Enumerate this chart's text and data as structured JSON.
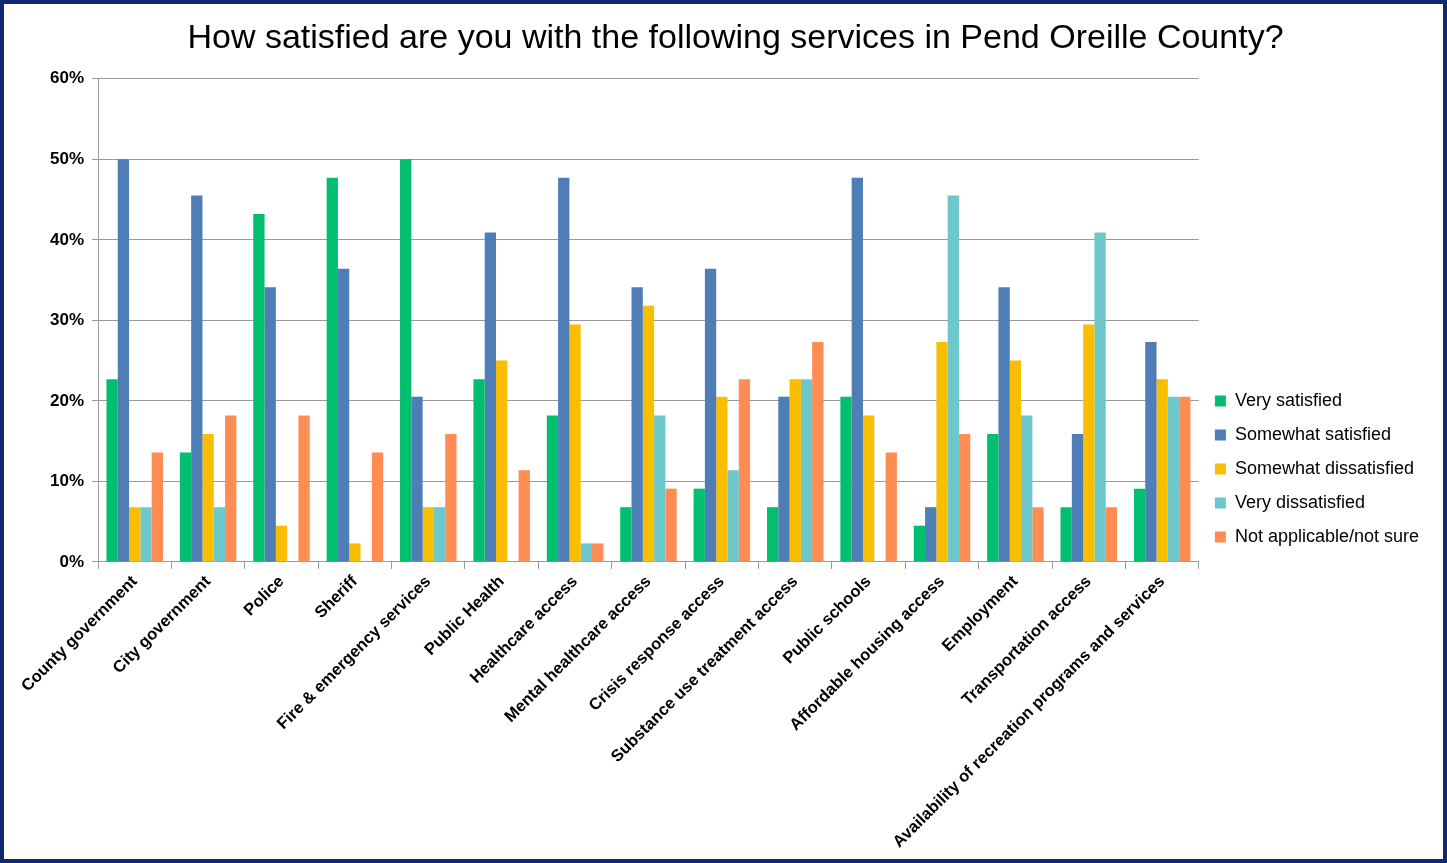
{
  "chart_data": {
    "type": "bar",
    "title": "How satisfied are you with the following services in Pend Oreille County?",
    "categories": [
      "County government",
      "City government",
      "Police",
      "Sheriff",
      "Fire & emergency services",
      "Public Health",
      "Healthcare access",
      "Mental healthcare access",
      "Crisis response access",
      "Substance use treatment access",
      "Public schools",
      "Affordable housing access",
      "Employment",
      "Transportation access",
      "Availability of recreation programs and services"
    ],
    "series": [
      {
        "name": "Very satisfied",
        "color": "#00bf6f",
        "values": [
          22.7,
          13.6,
          43.2,
          47.7,
          50.0,
          22.7,
          18.2,
          6.8,
          9.1,
          6.8,
          20.5,
          4.5,
          15.9,
          6.8,
          9.1
        ]
      },
      {
        "name": "Somewhat satisfied",
        "color": "#4f7db5",
        "values": [
          50.0,
          45.5,
          34.1,
          36.4,
          20.5,
          40.9,
          47.7,
          34.1,
          36.4,
          20.5,
          47.7,
          6.8,
          34.1,
          15.9,
          27.3
        ]
      },
      {
        "name": "Somewhat dissatisfied",
        "color": "#f9be00",
        "values": [
          6.8,
          15.9,
          4.5,
          2.3,
          6.8,
          25.0,
          29.5,
          31.8,
          20.5,
          22.7,
          18.2,
          27.3,
          25.0,
          29.5,
          22.7
        ]
      },
      {
        "name": "Very dissatisfied",
        "color": "#6cc8cb",
        "values": [
          6.8,
          6.8,
          0,
          0,
          6.8,
          0,
          2.3,
          18.2,
          11.4,
          22.7,
          0,
          45.5,
          18.2,
          40.9,
          20.5
        ]
      },
      {
        "name": "Not applicable/not sure",
        "color": "#ff8c53",
        "values": [
          13.6,
          18.2,
          18.2,
          13.6,
          15.9,
          11.4,
          2.3,
          9.1,
          22.7,
          27.3,
          13.6,
          15.9,
          6.8,
          6.8,
          20.5
        ]
      }
    ],
    "ylim": [
      0,
      60
    ],
    "yticks": [
      {
        "value": 0,
        "label": "0%"
      },
      {
        "value": 10,
        "label": "10%"
      },
      {
        "value": 20,
        "label": "20%"
      },
      {
        "value": 30,
        "label": "30%"
      },
      {
        "value": 40,
        "label": "40%"
      },
      {
        "value": 50,
        "label": "50%"
      },
      {
        "value": 60,
        "label": "60%"
      }
    ],
    "grid": "y",
    "legend": "right"
  }
}
